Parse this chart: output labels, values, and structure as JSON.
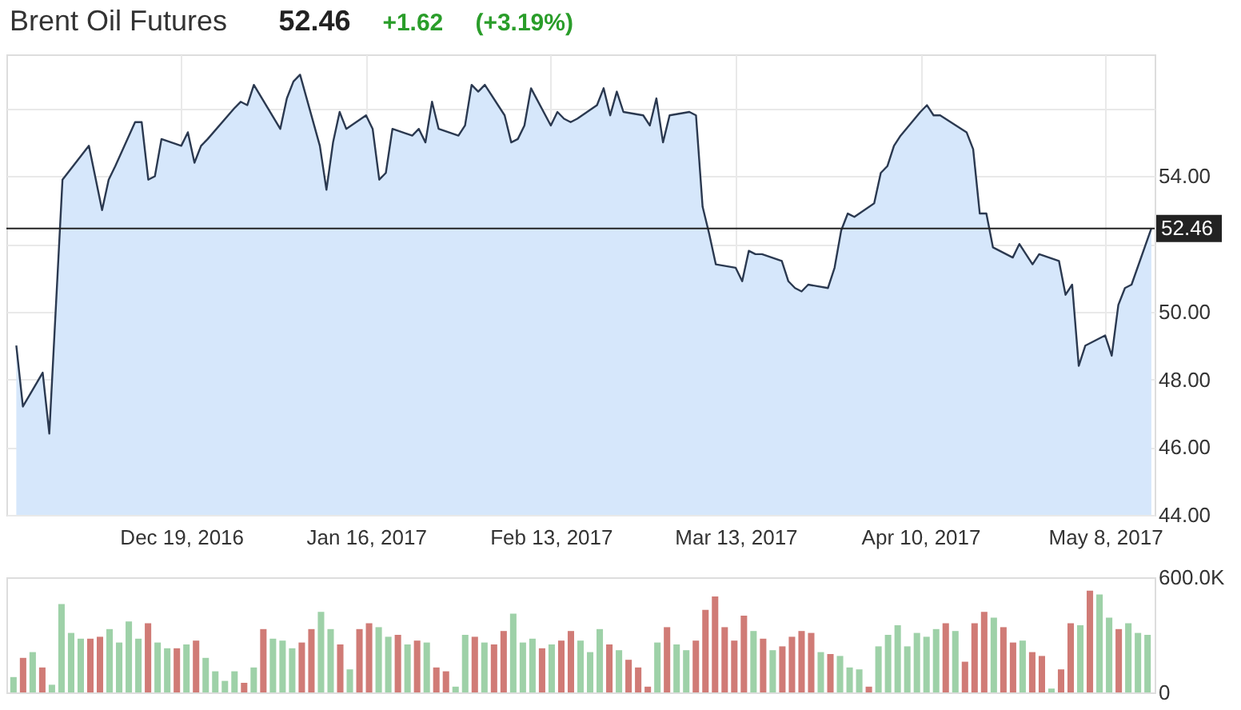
{
  "chart_data": [
    {
      "type": "area",
      "title": "Brent Oil Futures",
      "annotations": [
        "52.46",
        "+1.62",
        "(+3.19%)"
      ],
      "color": "#d6e7fb",
      "x": [
        "2016-11-24",
        "2016-11-25",
        "2016-11-28",
        "2016-11-29",
        "2016-12-01",
        "2016-12-05",
        "2016-12-07",
        "2016-12-08",
        "2016-12-09",
        "2016-12-12",
        "2016-12-13",
        "2016-12-14",
        "2016-12-15",
        "2016-12-16",
        "2016-12-19",
        "2016-12-20",
        "2016-12-21",
        "2016-12-22",
        "2016-12-23",
        "2016-12-27",
        "2016-12-28",
        "2016-12-29",
        "2016-12-30",
        "2017-01-03",
        "2017-01-04",
        "2017-01-05",
        "2017-01-06",
        "2017-01-09",
        "2017-01-10",
        "2017-01-11",
        "2017-01-12",
        "2017-01-13",
        "2017-01-16",
        "2017-01-17",
        "2017-01-18",
        "2017-01-19",
        "2017-01-20",
        "2017-01-23",
        "2017-01-24",
        "2017-01-25",
        "2017-01-26",
        "2017-01-27",
        "2017-01-30",
        "2017-01-31",
        "2017-02-01",
        "2017-02-02",
        "2017-02-03",
        "2017-02-06",
        "2017-02-07",
        "2017-02-08",
        "2017-02-09",
        "2017-02-10",
        "2017-02-13",
        "2017-02-14",
        "2017-02-15",
        "2017-02-16",
        "2017-02-17",
        "2017-02-20",
        "2017-02-21",
        "2017-02-22",
        "2017-02-23",
        "2017-02-24",
        "2017-02-27",
        "2017-02-28",
        "2017-03-01",
        "2017-03-02",
        "2017-03-03",
        "2017-03-06",
        "2017-03-07",
        "2017-03-08",
        "2017-03-09",
        "2017-03-10",
        "2017-03-13",
        "2017-03-14",
        "2017-03-15",
        "2017-03-16",
        "2017-03-17",
        "2017-03-20",
        "2017-03-21",
        "2017-03-22",
        "2017-03-23",
        "2017-03-24",
        "2017-03-27",
        "2017-03-28",
        "2017-03-29",
        "2017-03-30",
        "2017-03-31",
        "2017-04-03",
        "2017-04-04",
        "2017-04-05",
        "2017-04-06",
        "2017-04-07",
        "2017-04-10",
        "2017-04-11",
        "2017-04-12",
        "2017-04-13",
        "2017-04-17",
        "2017-04-18",
        "2017-04-19",
        "2017-04-20",
        "2017-04-21",
        "2017-04-24",
        "2017-04-25",
        "2017-04-26",
        "2017-04-27",
        "2017-04-28",
        "2017-05-01",
        "2017-05-02",
        "2017-05-03",
        "2017-05-04",
        "2017-05-05",
        "2017-05-08",
        "2017-05-09",
        "2017-05-10",
        "2017-05-11",
        "2017-05-12",
        "2017-05-15"
      ],
      "values": [
        49.0,
        47.2,
        48.2,
        46.4,
        53.9,
        54.9,
        53.0,
        53.9,
        54.3,
        55.6,
        55.6,
        53.9,
        54.0,
        55.1,
        54.9,
        55.3,
        54.4,
        54.9,
        55.1,
        56.0,
        56.2,
        56.1,
        56.7,
        55.4,
        56.3,
        56.8,
        57.0,
        54.9,
        53.6,
        55.0,
        55.9,
        55.4,
        55.8,
        55.4,
        53.9,
        54.1,
        55.4,
        55.2,
        55.4,
        55.0,
        56.2,
        55.4,
        55.2,
        55.5,
        56.7,
        56.5,
        56.7,
        55.8,
        55.0,
        55.1,
        55.5,
        56.6,
        55.5,
        55.9,
        55.7,
        55.6,
        55.7,
        56.1,
        56.6,
        55.8,
        56.5,
        55.9,
        55.8,
        55.5,
        56.3,
        55.0,
        55.8,
        55.9,
        55.8,
        53.1,
        52.3,
        51.4,
        51.3,
        50.9,
        51.8,
        51.7,
        51.7,
        51.5,
        50.9,
        50.7,
        50.6,
        50.8,
        50.7,
        51.3,
        52.4,
        52.9,
        52.8,
        53.2,
        54.1,
        54.3,
        54.9,
        55.2,
        55.9,
        56.1,
        55.8,
        55.8,
        55.3,
        54.8,
        52.9,
        52.9,
        51.9,
        51.6,
        52.0,
        51.7,
        51.4,
        51.7,
        51.5,
        50.5,
        50.8,
        48.4,
        49.0,
        49.3,
        48.7,
        50.2,
        50.7,
        50.8,
        52.46
      ],
      "xlim": [
        "2016-11-22T12:00",
        "2017-05-15T12:00"
      ],
      "xticks": [
        {
          "value": "2016-12-19",
          "label": "Dec 19, 2016"
        },
        {
          "value": "2017-01-16",
          "label": "Jan 16, 2017"
        },
        {
          "value": "2017-02-13",
          "label": "Feb 13, 2017"
        },
        {
          "value": "2017-03-13",
          "label": "Mar 13, 2017"
        },
        {
          "value": "2017-04-10",
          "label": "Apr 10, 2017"
        },
        {
          "value": "2017-05-08",
          "label": "May 8, 2017"
        }
      ],
      "ylim": [
        44,
        57.6
      ],
      "yticks": [
        {
          "value": 44,
          "label": "44.00"
        },
        {
          "value": 46,
          "label": "46.00"
        },
        {
          "value": 48,
          "label": "48.00"
        },
        {
          "value": 50,
          "label": "50.00"
        },
        {
          "value": 52,
          "label": null
        },
        {
          "value": 54,
          "label": "54.00"
        },
        {
          "value": 56,
          "label": null
        }
      ],
      "ref_lines": [
        {
          "axis": "y",
          "value": 52.46,
          "label": "52.46",
          "color": "#222222"
        }
      ],
      "grid": true
    },
    {
      "type": "bar",
      "categories": [
        null,
        null,
        null,
        null,
        null,
        null,
        null,
        null,
        null,
        null,
        null,
        null,
        null,
        null,
        null,
        null,
        null,
        null,
        null,
        null,
        null,
        null,
        null,
        null,
        null,
        null,
        null,
        null,
        null,
        null,
        null,
        null,
        null,
        null,
        null,
        null,
        null,
        null,
        null,
        null,
        null,
        null,
        null,
        null,
        null,
        null,
        null,
        null,
        null,
        null,
        null,
        null,
        null,
        null,
        null,
        null,
        null,
        null,
        null,
        null,
        null,
        null,
        null,
        null,
        null,
        null,
        null,
        null,
        null,
        null,
        null,
        null,
        null,
        null,
        null,
        null,
        null,
        null,
        null,
        null,
        null,
        null,
        null,
        null,
        null,
        null,
        null,
        null,
        null,
        null,
        null,
        null,
        null,
        null,
        null,
        null,
        null,
        null,
        null,
        null,
        null,
        null,
        null,
        null,
        null,
        null,
        null,
        null,
        null,
        null,
        null,
        null,
        null,
        null,
        null,
        null,
        null,
        null,
        null
      ],
      "values": [
        80000,
        180000,
        210000,
        130000,
        40000,
        460000,
        310000,
        280000,
        280000,
        290000,
        330000,
        260000,
        370000,
        280000,
        360000,
        260000,
        230000,
        230000,
        250000,
        270000,
        180000,
        110000,
        60000,
        110000,
        50000,
        130000,
        330000,
        280000,
        270000,
        230000,
        260000,
        330000,
        420000,
        330000,
        250000,
        120000,
        330000,
        360000,
        340000,
        290000,
        300000,
        250000,
        270000,
        260000,
        130000,
        110000,
        30000,
        300000,
        290000,
        260000,
        250000,
        320000,
        410000,
        260000,
        280000,
        230000,
        250000,
        270000,
        320000,
        270000,
        210000,
        330000,
        250000,
        220000,
        170000,
        130000,
        30000,
        260000,
        340000,
        250000,
        220000,
        270000,
        430000,
        500000,
        340000,
        270000,
        400000,
        320000,
        280000,
        220000,
        240000,
        290000,
        320000,
        310000,
        210000,
        200000,
        190000,
        130000,
        120000,
        30000,
        240000,
        300000,
        350000,
        240000,
        310000,
        290000,
        330000,
        360000,
        320000,
        160000,
        360000,
        420000,
        390000,
        340000,
        260000,
        270000,
        210000,
        190000,
        20000,
        120000,
        360000,
        350000,
        530000,
        510000,
        390000,
        330000,
        360000,
        310000,
        300000
      ],
      "colors": [
        "#9ed1a8",
        "#d07b76",
        "#9ed1a8",
        "#d07b76",
        "#9ed1a8",
        "#9ed1a8",
        "#9ed1a8",
        "#9ed1a8",
        "#d07b76",
        "#d07b76",
        "#9ed1a8",
        "#9ed1a8",
        "#9ed1a8",
        "#9ed1a8",
        "#d07b76",
        "#9ed1a8",
        "#9ed1a8",
        "#d07b76",
        "#9ed1a8",
        "#d07b76",
        "#9ed1a8",
        "#9ed1a8",
        "#9ed1a8",
        "#9ed1a8",
        "#d07b76",
        "#9ed1a8",
        "#d07b76",
        "#9ed1a8",
        "#9ed1a8",
        "#9ed1a8",
        "#d07b76",
        "#d07b76",
        "#9ed1a8",
        "#9ed1a8",
        "#d07b76",
        "#9ed1a8",
        "#d07b76",
        "#d07b76",
        "#9ed1a8",
        "#9ed1a8",
        "#d07b76",
        "#9ed1a8",
        "#d07b76",
        "#9ed1a8",
        "#d07b76",
        "#d07b76",
        "#9ed1a8",
        "#9ed1a8",
        "#d07b76",
        "#9ed1a8",
        "#d07b76",
        "#d07b76",
        "#9ed1a8",
        "#9ed1a8",
        "#9ed1a8",
        "#d07b76",
        "#9ed1a8",
        "#d07b76",
        "#d07b76",
        "#9ed1a8",
        "#9ed1a8",
        "#9ed1a8",
        "#d07b76",
        "#9ed1a8",
        "#d07b76",
        "#d07b76",
        "#d07b76",
        "#9ed1a8",
        "#d07b76",
        "#9ed1a8",
        "#9ed1a8",
        "#d07b76",
        "#d07b76",
        "#d07b76",
        "#d07b76",
        "#d07b76",
        "#d07b76",
        "#9ed1a8",
        "#d07b76",
        "#9ed1a8",
        "#d07b76",
        "#d07b76",
        "#d07b76",
        "#d07b76",
        "#9ed1a8",
        "#d07b76",
        "#9ed1a8",
        "#9ed1a8",
        "#9ed1a8",
        "#d07b76",
        "#9ed1a8",
        "#9ed1a8",
        "#9ed1a8",
        "#9ed1a8",
        "#9ed1a8",
        "#9ed1a8",
        "#9ed1a8",
        "#d07b76",
        "#9ed1a8",
        "#d07b76",
        "#d07b76",
        "#d07b76",
        "#9ed1a8",
        "#d07b76",
        "#d07b76",
        "#9ed1a8",
        "#d07b76",
        "#d07b76",
        "#9ed1a8",
        "#d07b76",
        "#d07b76",
        "#9ed1a8",
        "#d07b76",
        "#9ed1a8",
        "#9ed1a8",
        "#d07b76",
        "#9ed1a8",
        "#9ed1a8",
        "#9ed1a8"
      ],
      "ylim": [
        0,
        600000
      ],
      "yticks": [
        0,
        {
          "value": 600000,
          "label": "600.0K"
        }
      ]
    }
  ]
}
